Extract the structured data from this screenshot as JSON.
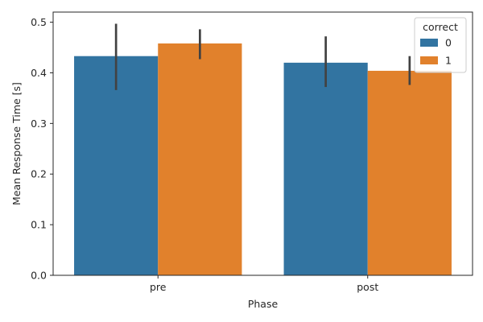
{
  "chart_data": {
    "type": "bar",
    "xlabel": "Phase",
    "ylabel": "Mean Response Time [s]",
    "categories": [
      "pre",
      "post"
    ],
    "ylim": [
      0,
      0.52
    ],
    "yticks": [
      "0.0",
      "0.1",
      "0.2",
      "0.3",
      "0.4",
      "0.5"
    ],
    "grid": false,
    "legend": {
      "title": "correct",
      "placement": "top-right"
    },
    "series": [
      {
        "name": "0",
        "color": "#3274a1",
        "values": [
          0.433,
          0.42
        ],
        "err_low": [
          0.366,
          0.372
        ],
        "err_high": [
          0.497,
          0.472
        ]
      },
      {
        "name": "1",
        "color": "#e1812c",
        "values": [
          0.458,
          0.404
        ],
        "err_low": [
          0.427,
          0.376
        ],
        "err_high": [
          0.486,
          0.433
        ]
      }
    ]
  }
}
